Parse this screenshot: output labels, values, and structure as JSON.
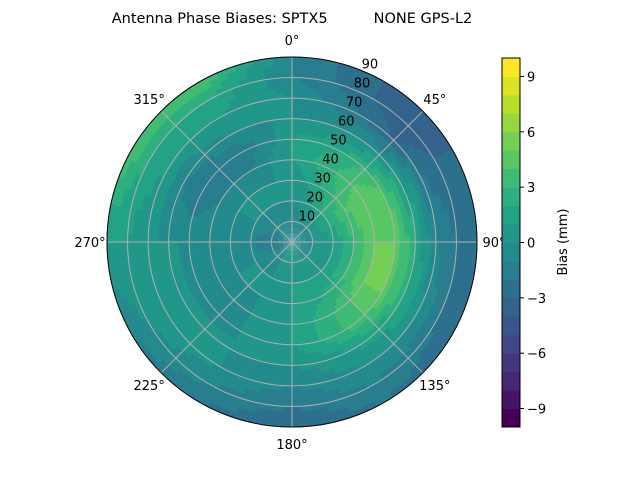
{
  "chart_data": {
    "type": "heatmap",
    "projection": "polar",
    "title": "Antenna Phase Biases: SPTX5          NONE GPS-L2",
    "theta_zero": "top",
    "theta_direction": "clockwise",
    "theta_ticks": [
      "0°",
      "45°",
      "90°",
      "135°",
      "180°",
      "225°",
      "270°",
      "315°"
    ],
    "r_ticks": [
      "10",
      "20",
      "30",
      "40",
      "50",
      "60",
      "70",
      "80",
      "90"
    ],
    "r_range": [
      0,
      90
    ],
    "grid": true,
    "colormap": "viridis",
    "colorbar": {
      "label": "Bias (mm)",
      "range": [
        -10,
        10
      ],
      "levels_step": 1,
      "ticks": [
        "−9",
        "−6",
        "−3",
        "0",
        "3",
        "6",
        "9"
      ],
      "tick_values": [
        -9,
        -6,
        -3,
        0,
        3,
        6,
        9
      ]
    },
    "azimuth_deg": [
      0,
      30,
      45,
      60,
      90,
      120,
      150,
      180,
      210,
      240,
      270,
      300,
      330
    ],
    "zenith_deg": [
      0,
      10,
      20,
      30,
      40,
      50,
      60,
      70,
      80,
      90
    ],
    "bias_mm": [
      [
        -1,
        -1,
        0,
        0,
        1,
        1,
        0,
        0,
        -1,
        -1
      ],
      [
        -1,
        0,
        1,
        2,
        3,
        2,
        0,
        -2,
        -3,
        -3
      ],
      [
        -1,
        0,
        2,
        3,
        4,
        3,
        0,
        -3,
        -4,
        -3
      ],
      [
        -1,
        0,
        2,
        4,
        5,
        4,
        1,
        -2,
        -3,
        -3
      ],
      [
        -1,
        0,
        1,
        3,
        5,
        5,
        2,
        -1,
        -2,
        -3
      ],
      [
        -1,
        0,
        1,
        3,
        5,
        5,
        2,
        0,
        -2,
        -3
      ],
      [
        0,
        0,
        1,
        2,
        3,
        3,
        1,
        0,
        -1,
        -2
      ],
      [
        0,
        0,
        1,
        1,
        1,
        1,
        0,
        -1,
        -2,
        -3
      ],
      [
        0,
        0,
        0,
        0,
        0,
        0,
        0,
        0,
        -1,
        -2
      ],
      [
        -1,
        -1,
        0,
        0,
        -1,
        -1,
        1,
        1,
        0,
        -1
      ],
      [
        -2,
        -2,
        -1,
        0,
        0,
        0,
        0,
        0,
        1,
        1
      ],
      [
        -1,
        -1,
        0,
        0,
        -1,
        -2,
        -1,
        1,
        2,
        4
      ],
      [
        -1,
        -1,
        0,
        0,
        -1,
        -2,
        0,
        1,
        2,
        4
      ]
    ]
  }
}
